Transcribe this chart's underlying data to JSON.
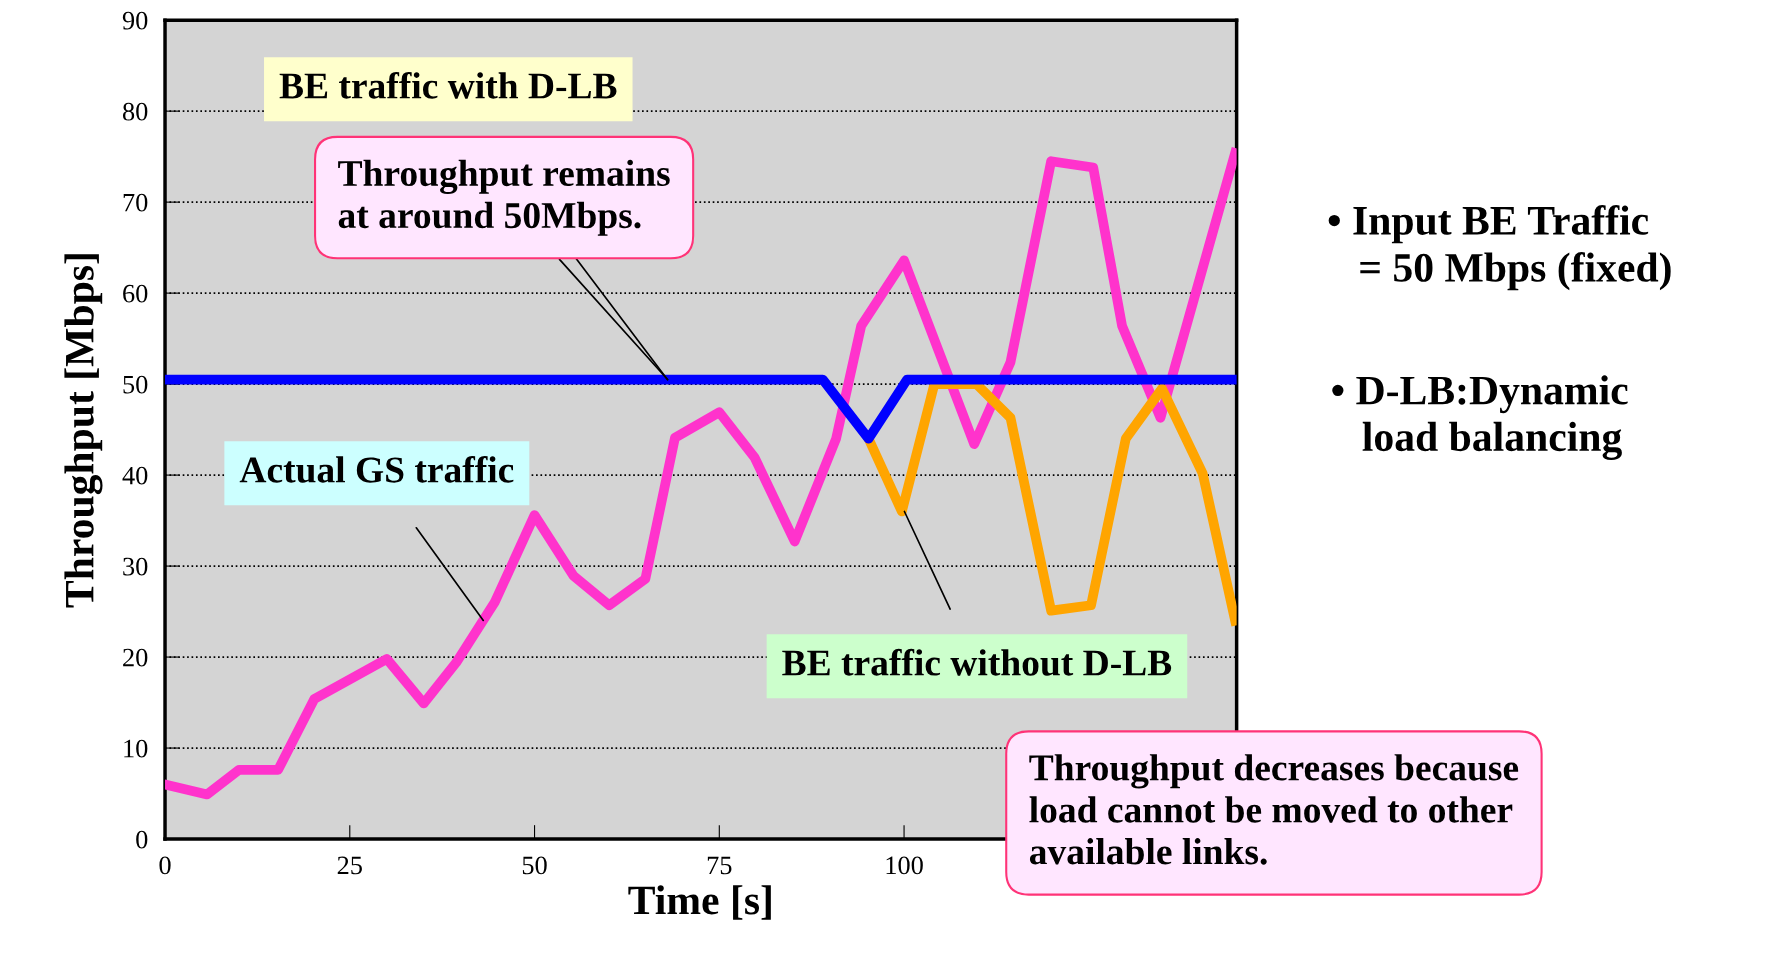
{
  "chart_data": {
    "type": "line",
    "xlabel": "Time [s]",
    "ylabel": "Throughput [Mbps]",
    "xlim": [
      0,
      145
    ],
    "ylim": [
      0,
      90
    ],
    "xticks": [
      0,
      25,
      50,
      75,
      100,
      {
        "value": 125,
        "label": null
      }
    ],
    "yticks": [
      0,
      10,
      20,
      30,
      40,
      50,
      60,
      70,
      80,
      90
    ],
    "grid": "y",
    "legend": false,
    "marker": "none",
    "line_style": "solid",
    "series": [
      {
        "name": "BE traffic with D-LB",
        "color": "#0000ff",
        "x": [
          0,
          89,
          95.2,
          100.4,
          145
        ],
        "values": [
          50.5,
          50.5,
          44,
          50.5,
          50.5
        ]
      },
      {
        "name": "Actual GS traffic",
        "color": "#ff33cc",
        "x": [
          0,
          5.7,
          10,
          15.3,
          20.2,
          30,
          35,
          39.4,
          44.6,
          50,
          55.3,
          60.1,
          65,
          69,
          75,
          79.8,
          85.2,
          90.8,
          94.2,
          100,
          109.5,
          114.4,
          119.9,
          125.6,
          129.5,
          134.7,
          144.8
        ],
        "values": [
          6,
          4.9,
          7.6,
          7.6,
          15.4,
          19.8,
          14.9,
          19.4,
          26,
          35.6,
          28.9,
          25.7,
          28.6,
          44.1,
          46.9,
          41.9,
          32.7,
          44,
          56.4,
          63.6,
          43.4,
          52.4,
          74.5,
          73.8,
          56.4,
          46.3,
          75.4
        ]
      },
      {
        "name": "BE traffic without D-LB",
        "color": "#ffa500",
        "x": [
          95.2,
          99.7,
          104.1,
          109.8,
          114.4,
          119.9,
          125.3,
          130,
          134.9,
          140.4,
          144.8
        ],
        "values": [
          44,
          36,
          50,
          50,
          46.3,
          25.1,
          25.7,
          44,
          49.5,
          40.2,
          24
        ]
      }
    ],
    "annotations": [
      {
        "text": "Throughput remains\nat around 50Mbps.",
        "x": 68,
        "y": 50.5
      },
      "Throughput decreases because\nload cannot be moved to other\navailable links.",
      "• Input BE Traffic\n   = 50 Mbps (fixed)",
      "• D-LB:Dynamic\n   load balancing"
    ]
  }
}
